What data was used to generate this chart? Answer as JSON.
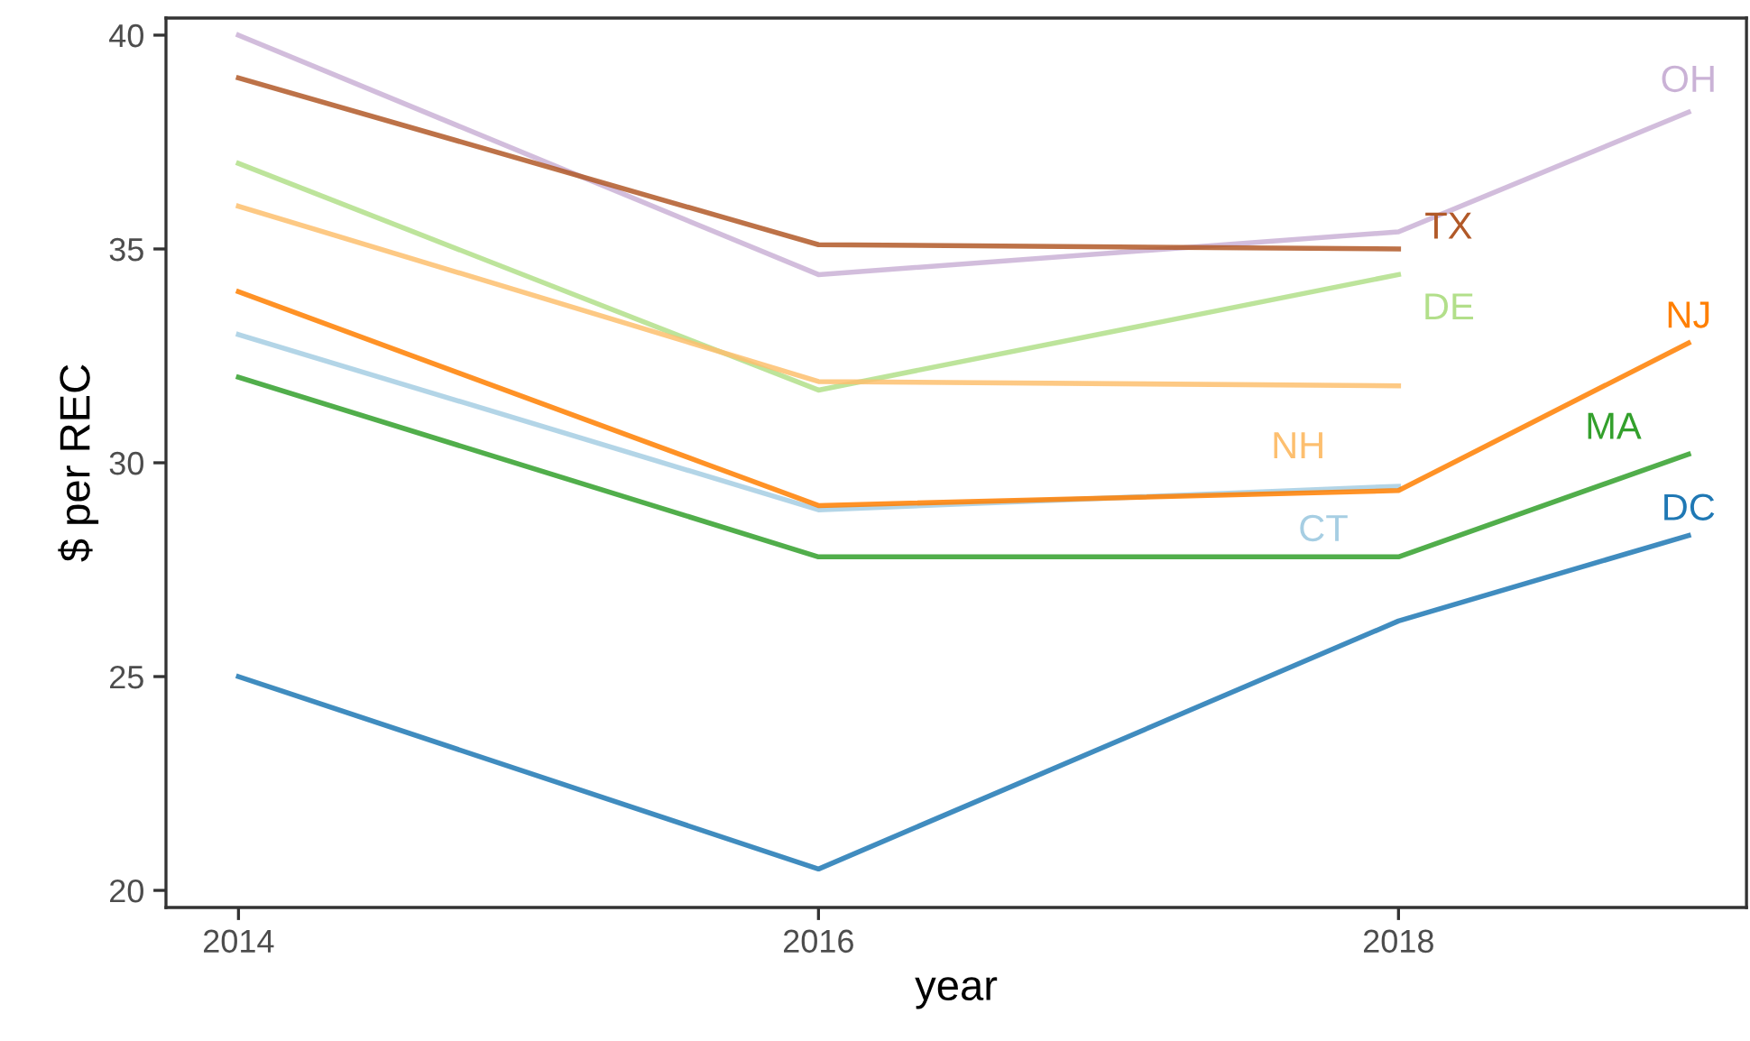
{
  "chart_data": {
    "type": "line",
    "xlabel": "year",
    "ylabel": "$ per REC",
    "xlim": [
      2013.75,
      2019.2
    ],
    "xticks": [
      2014,
      2016,
      2018
    ],
    "ylim": [
      19.6,
      40.4
    ],
    "yticks": [
      20,
      25,
      30,
      35,
      40
    ],
    "grid": false,
    "legend": false,
    "series": [
      {
        "name": "CT",
        "color": "#a6cee3",
        "x": [
          2014,
          2016,
          2018
        ],
        "values": [
          33,
          28.9,
          29.45
        ]
      },
      {
        "name": "DC",
        "color": "#1f78b4",
        "x": [
          2014,
          2016,
          2018,
          2019
        ],
        "values": [
          25,
          20.5,
          26.3,
          28.3
        ]
      },
      {
        "name": "DE",
        "color": "#b2df8a",
        "x": [
          2014,
          2016,
          2018
        ],
        "values": [
          37,
          31.7,
          34.4
        ]
      },
      {
        "name": "MA",
        "color": "#33a02c",
        "x": [
          2014,
          2016,
          2018,
          2019
        ],
        "values": [
          32,
          27.8,
          27.8,
          30.2
        ]
      },
      {
        "name": "NH",
        "color": "#fdbf6f",
        "x": [
          2014,
          2016,
          2018
        ],
        "values": [
          36,
          31.9,
          31.8
        ]
      },
      {
        "name": "NJ",
        "color": "#ff7f00",
        "x": [
          2014,
          2016,
          2018,
          2019
        ],
        "values": [
          34,
          29.0,
          29.35,
          32.8
        ]
      },
      {
        "name": "OH",
        "color": "#cab2d6",
        "x": [
          2014,
          2016,
          2018,
          2019
        ],
        "values": [
          40,
          34.4,
          35.4,
          38.2
        ]
      },
      {
        "name": "TX",
        "color": "#b15928",
        "x": [
          2014,
          2016,
          2018
        ],
        "values": [
          39,
          35.1,
          35.0
        ]
      }
    ]
  }
}
